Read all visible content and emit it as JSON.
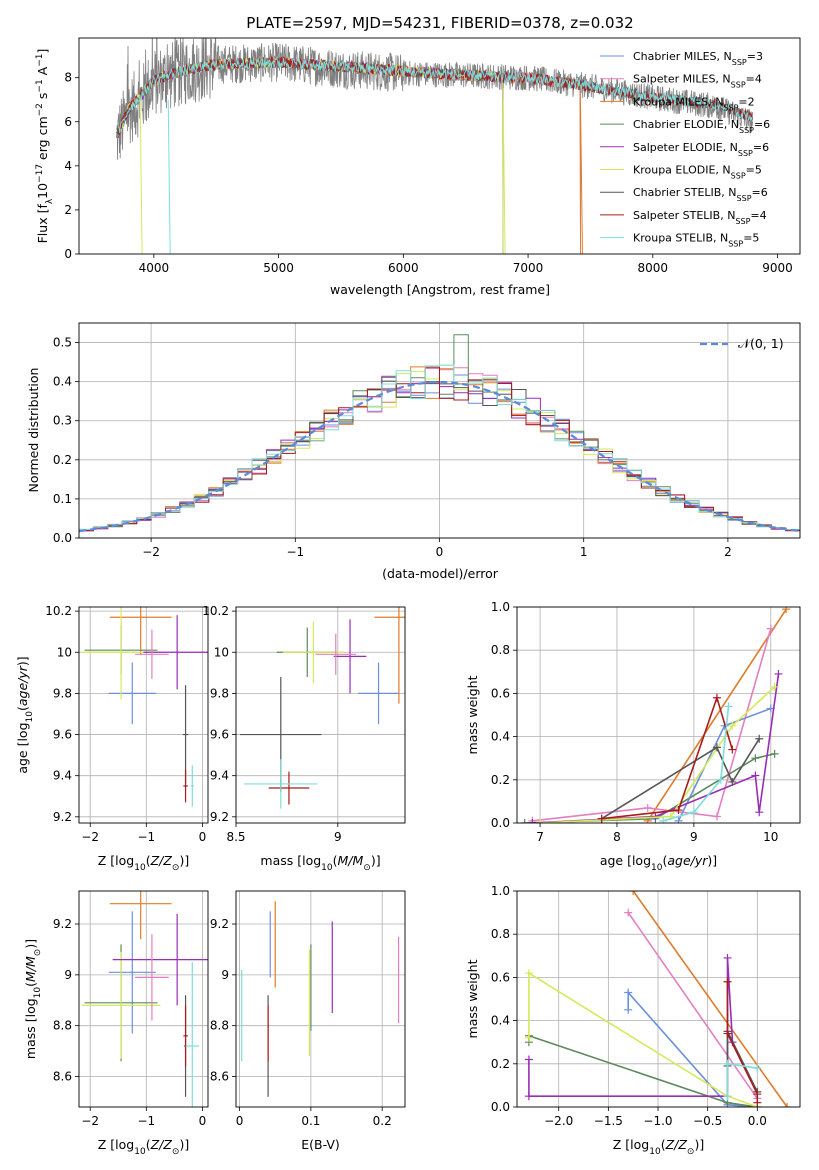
{
  "title": "PLATE=2597, MJD=54231, FIBERID=0378, z=0.032",
  "colors": {
    "Chabrier MILES": "#6b8fdc",
    "Salpeter MILES": "#e47fbf",
    "Kroupa MILES": "#e07b2a",
    "Chabrier ELODIE": "#5c8a5c",
    "Salpeter ELODIE": "#9a2db5",
    "Kroupa ELODIE": "#d5ea5a",
    "Chabrier STELIB": "#555555",
    "Salpeter STELIB": "#a81c1c",
    "Kroupa STELIB": "#7fdcdc",
    "data": "#808080",
    "normal": "#5b8ad8"
  },
  "chart_data": [
    {
      "id": "spectrum",
      "type": "line",
      "xlabel": "wavelength [Angstrom, rest frame]",
      "ylabel": "Flux [f_λ10^-17 erg cm^-2 s^-1 A^-1]",
      "xlim": [
        3400,
        9180
      ],
      "ylim": [
        0,
        9.8
      ],
      "xticks": [
        4000,
        5000,
        6000,
        7000,
        8000,
        9000
      ],
      "yticks": [
        0,
        2,
        4,
        6,
        8
      ],
      "legend": "top-right",
      "data_series": {
        "name": "data",
        "x": [
          3700,
          3800,
          3900,
          4000,
          4100,
          4300,
          4500,
          5000,
          5500,
          6000,
          6500,
          7000,
          7500,
          8000,
          8500,
          8800
        ],
        "y": [
          5.2,
          6.5,
          7.0,
          7.8,
          8.0,
          8.4,
          8.6,
          8.7,
          8.4,
          8.2,
          8.1,
          8.0,
          7.6,
          7.1,
          6.7,
          6.0
        ]
      },
      "model_x": [
        3700,
        3800,
        3900,
        4000,
        4100,
        4300,
        4500,
        5000,
        5500,
        6000,
        6500,
        7000,
        7500,
        8000,
        8500,
        8800
      ],
      "model_y": [
        5.3,
        6.6,
        7.2,
        7.9,
        8.1,
        8.4,
        8.6,
        8.7,
        8.5,
        8.3,
        8.1,
        8.0,
        7.6,
        7.1,
        6.8,
        6.2
      ],
      "series": [
        {
          "name": "Chabrier MILES",
          "nssp": "3",
          "x_end": 7420
        },
        {
          "name": "Salpeter MILES",
          "nssp": "4",
          "x_end": 7420
        },
        {
          "name": "Kroupa MILES",
          "nssp": "2",
          "x_end": 7420
        },
        {
          "name": "Chabrier ELODIE",
          "nssp": "6",
          "x_end": 6800
        },
        {
          "name": "Salpeter ELODIE",
          "nssp": "6",
          "x_end": 6800
        },
        {
          "name": "Kroupa ELODIE",
          "nssp": "5",
          "x_end": 6800
        },
        {
          "name": "Chabrier STELIB",
          "nssp": "6",
          "x_end": 8800
        },
        {
          "name": "Salpeter STELIB",
          "nssp": "4",
          "x_end": 8800
        },
        {
          "name": "Kroupa STELIB",
          "nssp": "5",
          "x_end": 8800
        }
      ]
    },
    {
      "id": "residuals",
      "type": "line",
      "xlabel": "(data-model)/error",
      "ylabel": "Normed distribution",
      "xlim": [
        -2.5,
        2.5
      ],
      "ylim": [
        0,
        0.55
      ],
      "xticks": [
        -2,
        -1,
        0,
        1,
        2
      ],
      "yticks": [
        0.0,
        0.1,
        0.2,
        0.3,
        0.4,
        0.5
      ],
      "grid": true,
      "legend": "top-right",
      "legend_label": "𝒩(0, 1)",
      "bin_width": 0.1
    },
    {
      "id": "age_vs_Z",
      "type": "scatter",
      "xlabel": "Z [log10(Z/Z⊙)]",
      "ylabel": "age [log10(age/yr)]",
      "xlim": [
        -2.2,
        0.1
      ],
      "ylim": [
        9.17,
        10.22
      ],
      "xticks": [
        -2,
        -1,
        0
      ],
      "yticks": [
        9.2,
        9.4,
        9.6,
        9.8,
        10.0,
        10.2
      ],
      "grid": true,
      "points": [
        {
          "s": "Kroupa MILES",
          "x": -1.1,
          "xerr": 0.55,
          "y": 10.17,
          "yerr": 0.18
        },
        {
          "s": "Chabrier MILES",
          "x": -1.25,
          "xerr": 0.42,
          "y": 9.8,
          "yerr": 0.15
        },
        {
          "s": "Chabrier ELODIE",
          "x": -1.45,
          "xerr": 0.65,
          "y": 10.01,
          "yerr": 0.12
        },
        {
          "s": "Kroupa ELODIE",
          "x": -1.45,
          "xerr": 0.7,
          "y": 10.0,
          "yerr": 0.23
        },
        {
          "s": "Salpeter ELODIE",
          "x": -0.45,
          "xerr": 0.6,
          "y": 10.0,
          "yerr": 0.18
        },
        {
          "s": "Salpeter MILES",
          "x": -0.9,
          "xerr": 0.3,
          "y": 9.99,
          "yerr": 0.12
        },
        {
          "s": "Chabrier STELIB",
          "x": -0.3,
          "xerr": 0.05,
          "y": 9.6,
          "yerr": 0.24
        },
        {
          "s": "Salpeter STELIB",
          "x": -0.3,
          "xerr": 0.04,
          "y": 9.35,
          "yerr": 0.08
        },
        {
          "s": "Kroupa STELIB",
          "x": -0.18,
          "xerr": 0.03,
          "y": 9.35,
          "yerr": 0.1
        }
      ]
    },
    {
      "id": "age_vs_mass",
      "type": "scatter",
      "xlabel": "mass [log10(M/M⊙)]",
      "ylabel": "",
      "xlim": [
        8.5,
        9.33
      ],
      "ylim": [
        9.17,
        10.22
      ],
      "xticks": [
        8.5,
        9.0
      ],
      "yticks": [
        9.2,
        9.4,
        9.6,
        9.8,
        10.0,
        10.2
      ],
      "grid": true,
      "points": [
        {
          "s": "Kroupa MILES",
          "x": 9.3,
          "xerr": 0.12,
          "y": 10.17,
          "yerr": 0.42
        },
        {
          "s": "Chabrier MILES",
          "x": 9.2,
          "xerr": 0.1,
          "y": 9.8,
          "yerr": 0.15
        },
        {
          "s": "Chabrier ELODIE",
          "x": 8.85,
          "xerr": 0.15,
          "y": 10.0,
          "yerr": 0.12
        },
        {
          "s": "Kroupa ELODIE",
          "x": 8.88,
          "xerr": 0.15,
          "y": 10.0,
          "yerr": 0.15
        },
        {
          "s": "Salpeter ELODIE",
          "x": 9.06,
          "xerr": 0.08,
          "y": 9.98,
          "yerr": 0.18
        },
        {
          "s": "Salpeter MILES",
          "x": 8.99,
          "xerr": 0.1,
          "y": 9.99,
          "yerr": 0.1
        },
        {
          "s": "Chabrier STELIB",
          "x": 8.72,
          "xerr": 0.2,
          "y": 9.6,
          "yerr": 0.28
        },
        {
          "s": "Salpeter STELIB",
          "x": 8.76,
          "xerr": 0.1,
          "y": 9.34,
          "yerr": 0.08
        },
        {
          "s": "Kroupa STELIB",
          "x": 8.72,
          "xerr": 0.18,
          "y": 9.36,
          "yerr": 0.12
        }
      ]
    },
    {
      "id": "mass_weight_vs_age",
      "type": "line",
      "xlabel": "age [log10(age/yr)]",
      "ylabel": "mass weight",
      "xlim": [
        6.7,
        10.38
      ],
      "ylim": [
        0,
        1.0
      ],
      "xticks": [
        7,
        8,
        9,
        10
      ],
      "yticks": [
        0.0,
        0.2,
        0.4,
        0.6,
        0.8,
        1.0
      ],
      "grid": true,
      "series": [
        {
          "name": "Kroupa MILES",
          "x": [
            8.4,
            10.2
          ],
          "y": [
            0.01,
            0.99
          ]
        },
        {
          "name": "Salpeter MILES",
          "x": [
            6.9,
            8.4,
            9.3,
            10.0
          ],
          "y": [
            0.01,
            0.07,
            0.03,
            0.9
          ]
        },
        {
          "name": "Chabrier MILES",
          "x": [
            8.8,
            9.4,
            10.0
          ],
          "y": [
            0.01,
            0.45,
            0.53
          ]
        },
        {
          "name": "Chabrier ELODIE",
          "x": [
            6.8,
            8.5,
            9.8,
            10.05
          ],
          "y": [
            0.0,
            0.02,
            0.3,
            0.32
          ]
        },
        {
          "name": "Salpeter ELODIE",
          "x": [
            6.9,
            8.5,
            9.8,
            9.85,
            10.1
          ],
          "y": [
            0.0,
            0.03,
            0.22,
            0.05,
            0.69
          ]
        },
        {
          "name": "Kroupa ELODIE",
          "x": [
            7.0,
            8.7,
            9.5,
            10.05
          ],
          "y": [
            0.0,
            0.03,
            0.45,
            0.63
          ]
        },
        {
          "name": "Chabrier STELIB",
          "x": [
            7.8,
            9.3,
            9.5,
            9.85
          ],
          "y": [
            0.02,
            0.35,
            0.19,
            0.39
          ]
        },
        {
          "name": "Salpeter STELIB",
          "x": [
            7.8,
            8.8,
            9.3,
            9.5
          ],
          "y": [
            0.02,
            0.06,
            0.58,
            0.34
          ]
        },
        {
          "name": "Kroupa STELIB",
          "x": [
            8.6,
            9.0,
            9.35,
            9.45
          ],
          "y": [
            0.01,
            0.05,
            0.2,
            0.54
          ]
        }
      ]
    },
    {
      "id": "mass_vs_Z",
      "type": "scatter",
      "xlabel": "Z [log10(Z/Z⊙)]",
      "ylabel": "mass [log10(M/M⊙)]",
      "xlim": [
        -2.2,
        0.1
      ],
      "ylim": [
        8.48,
        9.33
      ],
      "xticks": [
        -2,
        -1,
        0
      ],
      "yticks": [
        8.6,
        8.8,
        9.0,
        9.2
      ],
      "grid": true,
      "points": [
        {
          "s": "Kroupa MILES",
          "x": -1.1,
          "xerr": 0.55,
          "y": 9.28,
          "yerr": 0.14
        },
        {
          "s": "Chabrier MILES",
          "x": -1.25,
          "xerr": 0.42,
          "y": 9.01,
          "yerr": 0.24
        },
        {
          "s": "Chabrier ELODIE",
          "x": -1.45,
          "xerr": 0.65,
          "y": 8.89,
          "yerr": 0.23
        },
        {
          "s": "Kroupa ELODIE",
          "x": -1.45,
          "xerr": 0.7,
          "y": 8.88,
          "yerr": 0.21
        },
        {
          "s": "Salpeter ELODIE",
          "x": -0.45,
          "xerr": 1.15,
          "y": 9.06,
          "yerr": 0.18
        },
        {
          "s": "Salpeter MILES",
          "x": -0.9,
          "xerr": 0.3,
          "y": 8.99,
          "yerr": 0.17
        },
        {
          "s": "Chabrier STELIB",
          "x": -0.3,
          "xerr": 0.03,
          "y": 8.72,
          "yerr": 0.2
        },
        {
          "s": "Salpeter STELIB",
          "x": -0.3,
          "xerr": 0.04,
          "y": 8.76,
          "yerr": 0.12
        },
        {
          "s": "Kroupa STELIB",
          "x": -0.18,
          "xerr": 0.12,
          "y": 8.72,
          "yerr": 0.33
        }
      ]
    },
    {
      "id": "mass_vs_EBV",
      "type": "scatter",
      "xlabel": "E(B-V)",
      "ylabel": "",
      "xlim": [
        -0.005,
        0.232
      ],
      "ylim": [
        8.48,
        9.33
      ],
      "xticks": [
        0.0,
        0.1,
        0.2
      ],
      "yticks": [
        8.6,
        8.8,
        9.0,
        9.2
      ],
      "grid": true,
      "points": [
        {
          "s": "Kroupa MILES",
          "x": 0.05,
          "y": 9.12,
          "yerr": 0.17
        },
        {
          "s": "Chabrier MILES",
          "x": 0.043,
          "y": 9.12,
          "yerr": 0.13
        },
        {
          "s": "Chabrier ELODIE",
          "x": 0.1,
          "y": 8.95,
          "yerr": 0.17
        },
        {
          "s": "Kroupa ELODIE",
          "x": 0.098,
          "y": 8.89,
          "yerr": 0.21
        },
        {
          "s": "Salpeter ELODIE",
          "x": 0.13,
          "y": 9.03,
          "yerr": 0.18
        },
        {
          "s": "Salpeter MILES",
          "x": 0.223,
          "y": 8.98,
          "yerr": 0.17
        },
        {
          "s": "Chabrier STELIB",
          "x": 0.04,
          "y": 8.72,
          "yerr": 0.2
        },
        {
          "s": "Salpeter STELIB",
          "x": 0.04,
          "y": 8.77,
          "yerr": 0.11
        },
        {
          "s": "Kroupa STELIB",
          "x": 0.003,
          "y": 8.84,
          "yerr": 0.18
        }
      ]
    },
    {
      "id": "mass_weight_vs_Z",
      "type": "line",
      "xlabel": "Z [log10(Z/Z⊙)]",
      "ylabel": "mass weight",
      "xlim": [
        -2.42,
        0.43
      ],
      "ylim": [
        0,
        1.0
      ],
      "xticks": [
        -2.0,
        -1.5,
        -1.0,
        -0.5,
        0.0
      ],
      "yticks": [
        0.0,
        0.2,
        0.4,
        0.6,
        0.8,
        1.0
      ],
      "grid": true,
      "series": [
        {
          "name": "Kroupa MILES",
          "x": [
            -1.25,
            0.3
          ],
          "y": [
            1.0,
            0.0
          ]
        },
        {
          "name": "Salpeter MILES",
          "x": [
            -1.3,
            0.0
          ],
          "y": [
            0.9,
            0.04
          ]
        },
        {
          "name": "Chabrier MILES",
          "x": [
            -1.3,
            -1.3,
            -0.3,
            0.0
          ],
          "y": [
            0.45,
            0.53,
            0.01,
            0.0
          ]
        },
        {
          "name": "Chabrier ELODIE",
          "x": [
            -2.3,
            -2.3,
            -0.3,
            0.0
          ],
          "y": [
            0.3,
            0.33,
            0.02,
            0.0
          ]
        },
        {
          "name": "Salpeter ELODIE",
          "x": [
            -2.3,
            -2.3,
            -0.3,
            -0.3,
            -0.25
          ],
          "y": [
            0.22,
            0.05,
            0.05,
            0.69,
            0.3
          ]
        },
        {
          "name": "Kroupa ELODIE",
          "x": [
            -2.3,
            -2.3,
            -0.3,
            0.0
          ],
          "y": [
            0.32,
            0.62,
            0.05,
            0.0
          ]
        },
        {
          "name": "Chabrier STELIB",
          "x": [
            -0.3,
            -0.3,
            0.0
          ],
          "y": [
            0.19,
            0.35,
            0.07
          ]
        },
        {
          "name": "Salpeter STELIB",
          "x": [
            -0.3,
            -0.3,
            0.0,
            0.0
          ],
          "y": [
            0.58,
            0.34,
            0.06,
            0.02
          ]
        },
        {
          "name": "Kroupa STELIB",
          "x": [
            -0.3,
            -0.3,
            0.0
          ],
          "y": [
            0.05,
            0.2,
            0.18
          ]
        }
      ]
    }
  ]
}
